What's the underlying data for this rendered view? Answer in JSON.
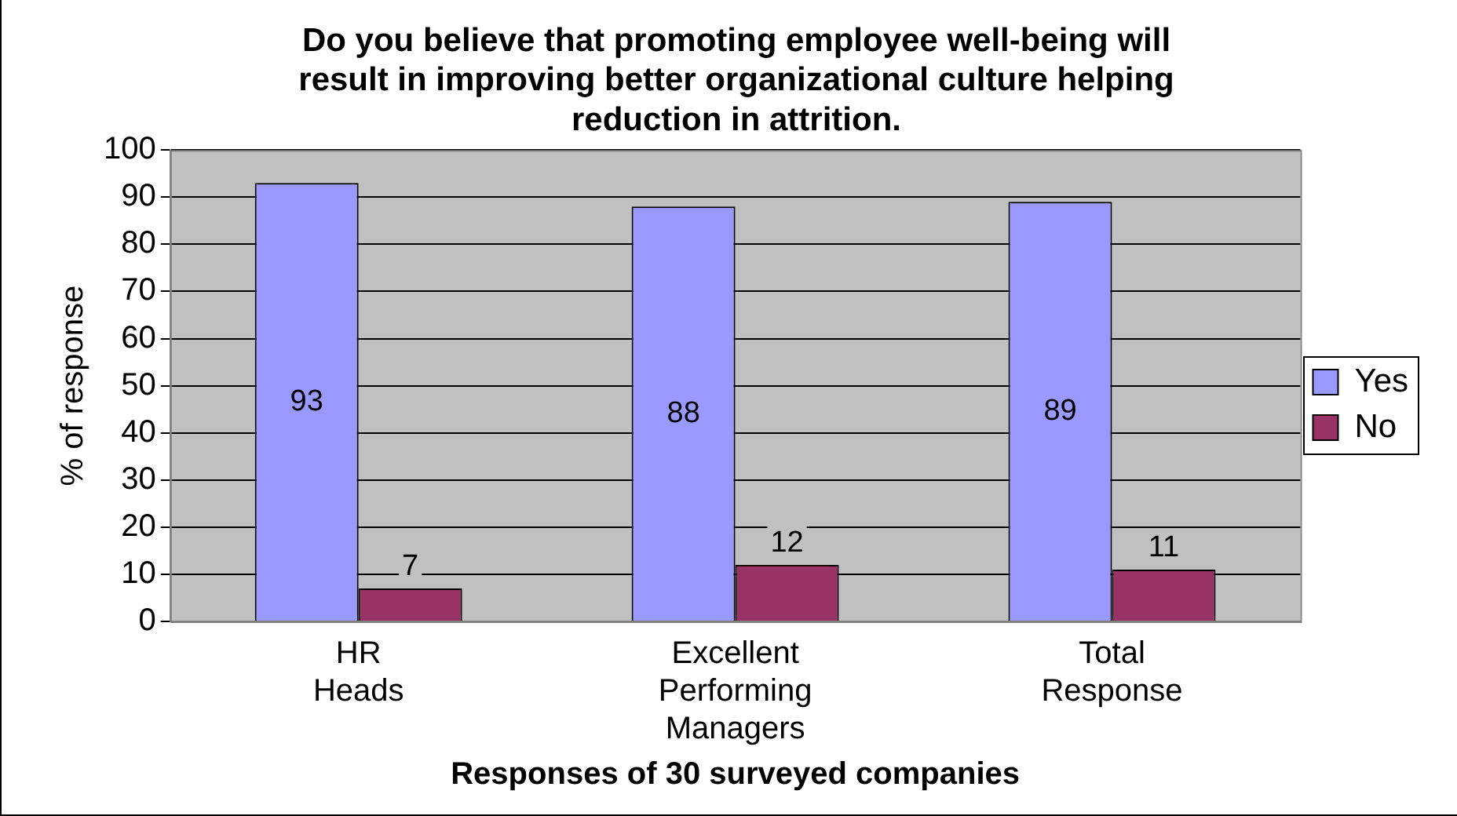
{
  "chart_data": {
    "type": "bar",
    "title": "Do you believe that promoting employee well-being will result in improving better organizational culture helping reduction in attrition.",
    "xlabel": "Responses of 30 surveyed companies",
    "ylabel": "% of response",
    "categories": [
      "HR Heads",
      "Excellent Performing Managers",
      "Total Response"
    ],
    "series": [
      {
        "name": "Yes",
        "color": "#9999ff",
        "values": [
          93,
          88,
          89
        ]
      },
      {
        "name": "No",
        "color": "#993366",
        "values": [
          7,
          12,
          11
        ]
      }
    ],
    "ylim": [
      0,
      100
    ],
    "yticks": [
      0,
      10,
      20,
      30,
      40,
      50,
      60,
      70,
      80,
      90,
      100
    ],
    "grid": "y",
    "legend": "right",
    "data_labels": true
  }
}
